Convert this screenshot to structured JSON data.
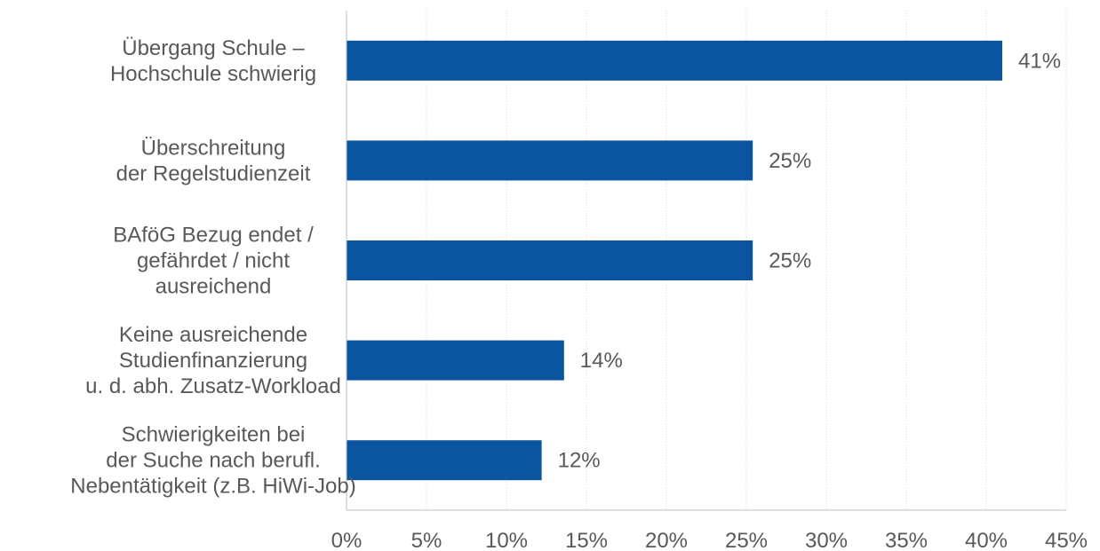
{
  "chart_data": {
    "type": "bar",
    "orientation": "horizontal",
    "categories": [
      [
        "Übergang Schule –",
        "Hochschule schwierig"
      ],
      [
        "Überschreitung",
        "der Regelstudienzeit"
      ],
      [
        "BAföG Bezug endet /",
        "gefährdet / nicht",
        "ausreichend"
      ],
      [
        "Keine ausreichende",
        "Studienfinanzierung",
        "u. d. abh. Zusatz-Workload"
      ],
      [
        "Schwierigkeiten bei",
        "der Suche nach berufl.",
        "Nebentätigkeit (z.B. HiWi-Job)"
      ]
    ],
    "values": [
      41,
      25.4,
      25.4,
      13.6,
      12.2
    ],
    "value_labels": [
      "41%",
      "25%",
      "25%",
      "14%",
      "12%"
    ],
    "xlim": [
      0,
      45
    ],
    "x_ticks": [
      0,
      5,
      10,
      15,
      20,
      25,
      30,
      35,
      40,
      45
    ],
    "x_tick_labels": [
      "0%",
      "5%",
      "10%",
      "15%",
      "20%",
      "25%",
      "30%",
      "35%",
      "40%",
      "45%"
    ],
    "bar_color": "#0b55a0",
    "grid": true,
    "legend": "none"
  }
}
